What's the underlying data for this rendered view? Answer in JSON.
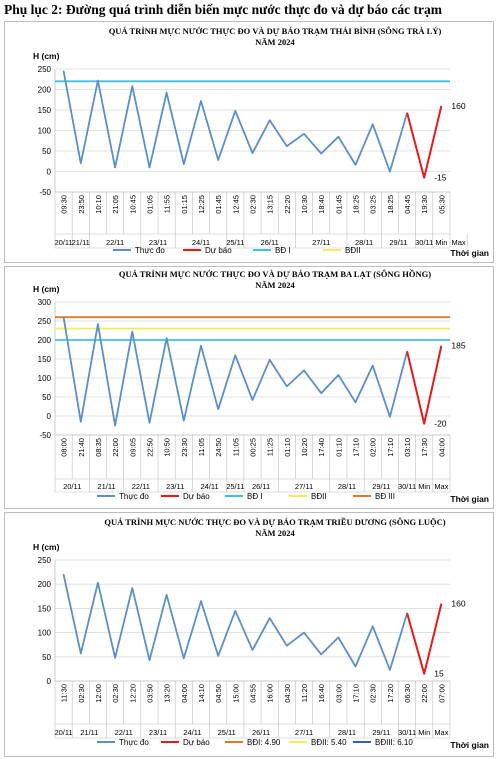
{
  "page_title": "Phụ lục 2: Đường quá trình diễn biến mực nước thực đo và dự báo các trạm",
  "chart_data": [
    {
      "type": "line",
      "title": "QUÁ TRÌNH MỰC NƯỚC THỰC ĐO VÀ DỰ BÁO TRẠM THÁI BÌNH (SÔNG TRÀ LÝ)",
      "subtitle": "NĂM 2024",
      "ylabel": "H (cm)",
      "xlabel": "Thời gian",
      "ylim": [
        -50,
        250
      ],
      "ystep": 50,
      "x_labels": [
        "09:30",
        "23:50",
        "10:10",
        "21:05",
        "10:45",
        "01:05",
        "11:55",
        "01:15",
        "12:25",
        "01:45",
        "12:45",
        "02:30",
        "13:15",
        "22:20",
        "10:30",
        "18:40",
        "01:45",
        "18:25",
        "03:25",
        "18:25",
        "04:45",
        "19:30",
        "05:30"
      ],
      "date_groups": [
        {
          "label": "20/11",
          "span": 1
        },
        {
          "label": "21/11",
          "span": 1
        },
        {
          "label": "22/11",
          "span": 3
        },
        {
          "label": "23/11",
          "span": 2
        },
        {
          "label": "24/11",
          "span": 3
        },
        {
          "label": "25/11",
          "span": 1
        },
        {
          "label": "26/11",
          "span": 3
        },
        {
          "label": "27/11",
          "span": 3
        },
        {
          "label": "28/11",
          "span": 2
        },
        {
          "label": "29/11",
          "span": 2
        },
        {
          "label": "30/11",
          "span": 1
        },
        {
          "label": "Min",
          "span": 1
        },
        {
          "label": "Max",
          "span": 1
        }
      ],
      "observed": [
        245,
        20,
        222,
        10,
        208,
        10,
        192,
        18,
        172,
        28,
        148,
        45,
        125,
        62,
        92,
        44,
        85,
        16,
        115,
        0,
        143
      ],
      "forecast_indices": [
        20,
        21,
        22
      ],
      "forecast": [
        143,
        -15,
        160
      ],
      "forecast_labels": [
        "",
        "-15",
        "160"
      ],
      "hlines": [
        {
          "name": "BĐ I",
          "value": 220,
          "color": "#3fbfea"
        }
      ],
      "legend": [
        {
          "name": "Thực đo",
          "color": "#5a8fc8"
        },
        {
          "name": "Dự báo",
          "color": "#e61a1a"
        },
        {
          "name": "BĐ I",
          "color": "#3fbfea"
        },
        {
          "name": "BĐII",
          "color": "#f5ee5a"
        }
      ]
    },
    {
      "type": "line",
      "title": "QUÁ TRÌNH MỰC NƯỚC THỰC ĐO VÀ DỰ BÁO TRẠM BA LẠT (SÔNG HỒNG)",
      "subtitle": "NĂM 2024",
      "ylabel": "H (cm)",
      "xlabel": "Thời gian",
      "ylim": [
        -50,
        300
      ],
      "ystep": 50,
      "x_labels": [
        "08:00",
        "21:40",
        "08:35",
        "22:00",
        "09:05",
        "22:50",
        "10:50",
        "23:30",
        "11:05",
        "24:50",
        "11:05",
        "00:25",
        "11:25",
        "01:10",
        "10:20",
        "17:40",
        "01:10",
        "17:10",
        "02:00",
        "17:10",
        "03:10",
        "17:30",
        "04:00"
      ],
      "date_groups": [
        {
          "label": "20/11",
          "span": 2
        },
        {
          "label": "21/11",
          "span": 2
        },
        {
          "label": "22/11",
          "span": 2
        },
        {
          "label": "23/11",
          "span": 2
        },
        {
          "label": "24/11",
          "span": 2
        },
        {
          "label": "25/11",
          "span": 1
        },
        {
          "label": "26/11",
          "span": 2
        },
        {
          "label": "27/11",
          "span": 3
        },
        {
          "label": "28/11",
          "span": 2
        },
        {
          "label": "29/11",
          "span": 2
        },
        {
          "label": "30/11",
          "span": 1
        },
        {
          "label": "Min",
          "span": 1
        },
        {
          "label": "Max",
          "span": 1
        }
      ],
      "observed": [
        260,
        -15,
        242,
        -25,
        222,
        -18,
        205,
        -12,
        185,
        18,
        160,
        42,
        148,
        78,
        120,
        60,
        108,
        36,
        133,
        -2,
        170
      ],
      "forecast_indices": [
        20,
        21,
        22
      ],
      "forecast": [
        170,
        -20,
        185
      ],
      "forecast_labels": [
        "",
        "-20",
        "185"
      ],
      "hlines": [
        {
          "name": "BĐ I",
          "value": 200,
          "color": "#3fbfea"
        },
        {
          "name": "BĐII",
          "value": 230,
          "color": "#f5ee5a"
        },
        {
          "name": "BĐ III",
          "value": 260,
          "color": "#e07b24"
        }
      ],
      "legend": [
        {
          "name": "Thực đo",
          "color": "#5a8fc8"
        },
        {
          "name": "Dự báo",
          "color": "#e61a1a"
        },
        {
          "name": "BĐ I",
          "color": "#3fbfea"
        },
        {
          "name": "BĐII",
          "color": "#f5ee5a"
        },
        {
          "name": "BĐ III",
          "color": "#e07b24"
        }
      ]
    },
    {
      "type": "line",
      "title": "QUÁ TRÌNH MỰC NƯỚC THỰC ĐO VÀ DỰ BÁO TRẠM TRIỀU DƯƠNG (SÔNG LUỘC)",
      "subtitle": "NĂM 2024",
      "ylabel": "H (cm)",
      "xlabel": "Thời gian",
      "ylim": [
        0,
        250
      ],
      "ystep": 50,
      "x_labels": [
        "11:30",
        "02:30",
        "12:00",
        "02:30",
        "12:20",
        "03:50",
        "13:20",
        "04:00",
        "14:10",
        "04:50",
        "15:00",
        "04:55",
        "16:00",
        "04:30",
        "11:20",
        "16:40",
        "03:00",
        "17:10",
        "02:30",
        "17:20",
        "06:30",
        "22:00",
        "07:00"
      ],
      "date_groups": [
        {
          "label": "20/11",
          "span": 1
        },
        {
          "label": "21/11",
          "span": 2
        },
        {
          "label": "22/11",
          "span": 2
        },
        {
          "label": "23/11",
          "span": 2
        },
        {
          "label": "24/11",
          "span": 2
        },
        {
          "label": "25/11",
          "span": 2
        },
        {
          "label": "26/11",
          "span": 2
        },
        {
          "label": "27/11",
          "span": 3
        },
        {
          "label": "28/11",
          "span": 2
        },
        {
          "label": "29/11",
          "span": 2
        },
        {
          "label": "30/11",
          "span": 1
        },
        {
          "label": "Min",
          "span": 1
        },
        {
          "label": "Max",
          "span": 1
        }
      ],
      "observed": [
        220,
        57,
        203,
        48,
        192,
        43,
        178,
        47,
        165,
        52,
        145,
        64,
        130,
        73,
        100,
        55,
        90,
        30,
        113,
        23,
        140
      ],
      "forecast_indices": [
        20,
        21,
        22
      ],
      "forecast": [
        140,
        15,
        160
      ],
      "forecast_labels": [
        "",
        "15",
        "160"
      ],
      "hlines": [],
      "legend": [
        {
          "name": "Thực đo",
          "color": "#5a8fc8"
        },
        {
          "name": "Dự báo",
          "color": "#e61a1a"
        },
        {
          "name": "BĐI: 4.90",
          "color": "#e07b24"
        },
        {
          "name": "BĐII: 5.40",
          "color": "#f5ee5a"
        },
        {
          "name": "BĐIII: 6.10",
          "color": "#3a5fb0"
        }
      ]
    }
  ]
}
